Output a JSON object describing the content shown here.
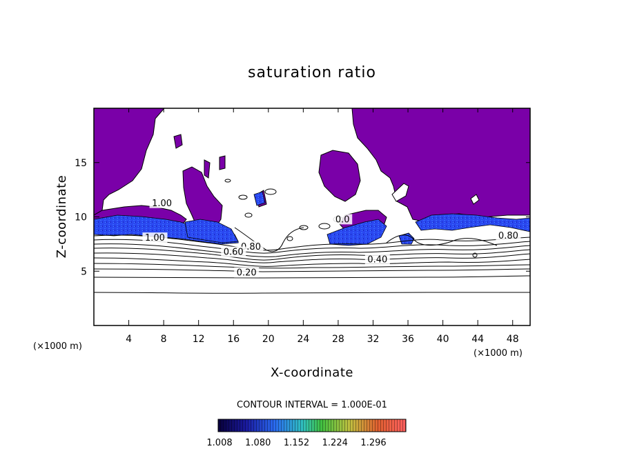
{
  "chart_data": {
    "type": "heatmap",
    "title": "saturation ratio",
    "xlabel": "X-coordinate",
    "ylabel": "Z-coordinate",
    "x_unit_left": "(×1000 m)",
    "x_unit_right": "(×1000 m)",
    "xlim": [
      0,
      50
    ],
    "ylim": [
      0,
      20
    ],
    "xticks": [
      4,
      8,
      12,
      16,
      20,
      24,
      28,
      32,
      36,
      40,
      44,
      48
    ],
    "yticks": [
      5,
      10,
      15
    ],
    "contour_interval_text": "CONTOUR INTERVAL = 1.000E-01",
    "contour_labels": [
      {
        "text": "1.00",
        "x": 7.8,
        "z": 11.0
      },
      {
        "text": "1.00",
        "x": 7.0,
        "z": 7.8
      },
      {
        "text": "0.80",
        "x": 18.0,
        "z": 7.0
      },
      {
        "text": "0.60",
        "x": 16.0,
        "z": 6.5
      },
      {
        "text": "0.40",
        "x": 32.5,
        "z": 5.8
      },
      {
        "text": "0.20",
        "x": 17.5,
        "z": 4.6
      },
      {
        "text": "0.80",
        "x": 47.5,
        "z": 8.0
      },
      {
        "text": "0.0",
        "x": 28.5,
        "z": 9.5
      }
    ],
    "colorbar": {
      "labels": [
        "1.008",
        "1.080",
        "1.152",
        "1.224",
        "1.296"
      ],
      "min": 1.008,
      "max": 1.296
    },
    "colors": {
      "supersat_fill": "#7a00a8",
      "high_band": "#2a3cf0",
      "contour": "#000000"
    }
  }
}
